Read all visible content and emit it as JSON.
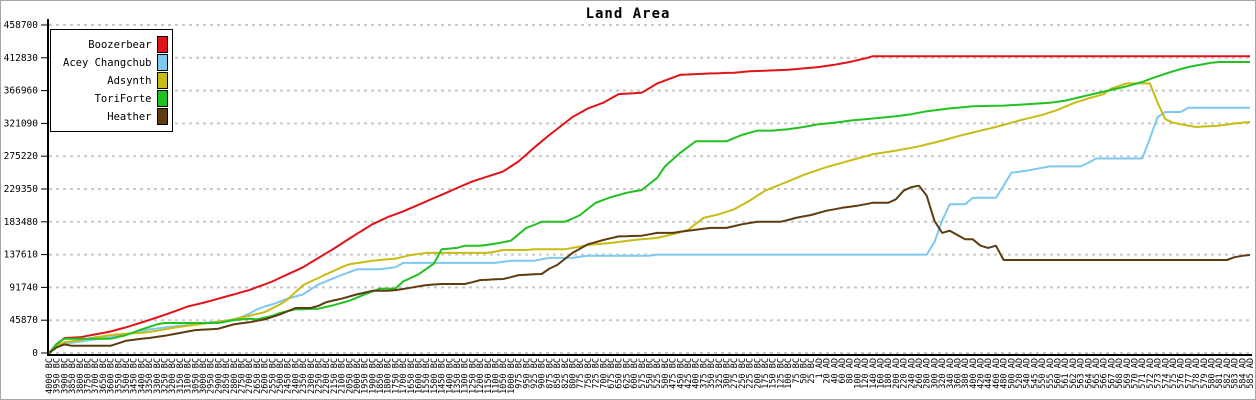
{
  "window": {
    "title": "Land Area"
  },
  "colors": {
    "background": "#ffffff",
    "frame_border": "#a6a6a6",
    "grid": "#c9c9c9",
    "axis": "#000000",
    "legend_border": "#000000"
  },
  "chart_data": {
    "type": "line",
    "title": "Land Area",
    "xlabel": "",
    "ylabel": "",
    "ylim": [
      0,
      458700
    ],
    "grid": "horizontal-dashed",
    "legend_position": "top-left",
    "y_ticks": [
      458700,
      412830,
      366960,
      321090,
      275220,
      229350,
      183480,
      137610,
      91740,
      45870,
      0
    ],
    "x_labels": [
      "4000 BC",
      "3950 BC",
      "3900 BC",
      "3850 BC",
      "3800 BC",
      "3750 BC",
      "3700 BC",
      "3650 BC",
      "3600 BC",
      "3550 BC",
      "3500 BC",
      "3450 BC",
      "3400 BC",
      "3350 BC",
      "3300 BC",
      "3250 BC",
      "3200 BC",
      "3150 BC",
      "3100 BC",
      "3050 BC",
      "3000 BC",
      "2950 BC",
      "2900 BC",
      "2850 BC",
      "2800 BC",
      "2750 BC",
      "2700 BC",
      "2650 BC",
      "2600 BC",
      "2550 BC",
      "2500 BC",
      "2450 BC",
      "2400 BC",
      "2350 BC",
      "2300 BC",
      "2250 BC",
      "2200 BC",
      "2150 BC",
      "2100 BC",
      "2050 BC",
      "2000 BC",
      "1950 BC",
      "1900 BC",
      "1850 BC",
      "1800 BC",
      "1750 BC",
      "1700 BC",
      "1650 BC",
      "1600 BC",
      "1550 BC",
      "1500 BC",
      "1450 BC",
      "1400 BC",
      "1350 BC",
      "1300 BC",
      "1250 BC",
      "1200 BC",
      "1150 BC",
      "1100 BC",
      "1050 BC",
      "1000 BC",
      "975 BC",
      "950 BC",
      "925 BC",
      "900 BC",
      "875 BC",
      "850 BC",
      "825 BC",
      "800 BC",
      "775 BC",
      "750 BC",
      "725 BC",
      "700 BC",
      "675 BC",
      "650 BC",
      "625 BC",
      "600 BC",
      "575 BC",
      "550 BC",
      "525 BC",
      "500 BC",
      "475 BC",
      "450 BC",
      "425 BC",
      "400 BC",
      "375 BC",
      "350 BC",
      "325 BC",
      "300 BC",
      "275 BC",
      "250 BC",
      "225 BC",
      "200 BC",
      "175 BC",
      "150 BC",
      "125 BC",
      "100 BC",
      "75 BC",
      "50 BC",
      "25 BC",
      "1 AD",
      "20 AD",
      "40 AD",
      "60 AD",
      "80 AD",
      "100 AD",
      "120 AD",
      "140 AD",
      "160 AD",
      "180 AD",
      "200 AD",
      "220 AD",
      "240 AD",
      "260 AD",
      "280 AD",
      "300 AD",
      "320 AD",
      "340 AD",
      "360 AD",
      "380 AD",
      "400 AD",
      "420 AD",
      "440 AD",
      "460 AD",
      "480 AD",
      "500 AD",
      "520 AD",
      "540 AD",
      "545 AD",
      "550 AD",
      "555 AD",
      "560 AD",
      "561 AD",
      "562 AD",
      "563 AD",
      "564 AD",
      "565 AD",
      "566 AD",
      "567 AD",
      "568 AD",
      "569 AD",
      "570 AD",
      "571 AD",
      "572 AD",
      "573 AD",
      "574 AD",
      "575 AD",
      "576 AD",
      "577 AD",
      "578 AD",
      "579 AD",
      "580 AD",
      "581 AD",
      "582 AD",
      "583 AD",
      "584 AD",
      "585 AD"
    ],
    "series": [
      {
        "name": "Boozerbear",
        "color": "#e01418",
        "values": [
          0,
          12000,
          21000,
          21500,
          22000,
          24000,
          26000,
          28000,
          30000,
          33000,
          36000,
          39300,
          42700,
          46000,
          49700,
          53300,
          57000,
          61000,
          65000,
          67500,
          70000,
          73000,
          76000,
          79000,
          82000,
          85000,
          88000,
          92000,
          96000,
          100000,
          105000,
          110000,
          115000,
          120000,
          126500,
          133000,
          139500,
          146000,
          153000,
          160000,
          166700,
          173300,
          180000,
          185000,
          190000,
          194000,
          198000,
          202700,
          207300,
          212000,
          216700,
          221300,
          226000,
          230700,
          235300,
          240000,
          243500,
          247000,
          250500,
          254000,
          261000,
          268000,
          277500,
          287000,
          296000,
          305000,
          313300,
          321700,
          330000,
          336000,
          342000,
          346000,
          350000,
          356000,
          362000,
          362700,
          363300,
          364000,
          370500,
          377000,
          381000,
          385000,
          389000,
          389500,
          390000,
          390500,
          391000,
          391300,
          391700,
          392000,
          393000,
          394000,
          394400,
          394800,
          395200,
          395600,
          396000,
          397000,
          398000,
          399000,
          400000,
          401500,
          403000,
          405000,
          407000,
          409500,
          412000,
          415000,
          415000,
          415000,
          415000,
          415000,
          415000,
          415000,
          415000,
          415000,
          415000,
          415000,
          415000,
          415000,
          415000,
          415000,
          415000,
          415000,
          415000,
          415000,
          415000,
          415000,
          415000,
          415000,
          415000,
          415000,
          415000,
          415000,
          415000,
          415000,
          415000,
          415000,
          415000,
          415000,
          415000,
          415000,
          415000,
          415000,
          415000,
          415000,
          415000,
          415000,
          415000,
          415000,
          415000,
          415000,
          415000,
          415000,
          415000,
          415000,
          415000
        ]
      },
      {
        "name": "Acey Changchub",
        "color": "#7fc9ef",
        "values": [
          0,
          8000,
          13000,
          14500,
          16000,
          17500,
          19000,
          20500,
          22000,
          24000,
          26000,
          28300,
          30700,
          33000,
          34300,
          35700,
          37000,
          38000,
          39000,
          40500,
          42000,
          43000,
          44000,
          45000,
          47500,
          50000,
          55000,
          61000,
          65000,
          68000,
          72000,
          76000,
          79000,
          82000,
          89000,
          96000,
          100300,
          104700,
          109000,
          113000,
          117000,
          117000,
          117000,
          117000,
          118500,
          120000,
          126000,
          126000,
          126000,
          126000,
          126000,
          126000,
          126000,
          126000,
          126000,
          126000,
          126000,
          126000,
          126000,
          127500,
          129000,
          129000,
          129000,
          129000,
          131000,
          133000,
          133000,
          133000,
          133000,
          134500,
          136000,
          136000,
          136000,
          136000,
          136000,
          136000,
          136000,
          136000,
          136000,
          137610,
          137610,
          137610,
          137610,
          137610,
          137610,
          137610,
          137610,
          137610,
          137610,
          137610,
          137610,
          137610,
          137610,
          137610,
          137610,
          137610,
          137610,
          137610,
          137610,
          137610,
          137610,
          137610,
          137610,
          137610,
          137610,
          137610,
          137610,
          137610,
          137610,
          137610,
          137610,
          137610,
          137610,
          137610,
          137610,
          155000,
          185000,
          208000,
          208000,
          208000,
          217000,
          217000,
          217000,
          217000,
          234000,
          252000,
          253500,
          255000,
          257000,
          259000,
          261000,
          261000,
          261000,
          261000,
          261000,
          266000,
          272000,
          272000,
          272000,
          272000,
          272000,
          272000,
          272000,
          300000,
          330000,
          337000,
          337000,
          337000,
          343000,
          343000,
          343000,
          343000,
          343000,
          343000,
          343000,
          343000,
          343000
        ]
      },
      {
        "name": "Adsynth",
        "color": "#c8bc14",
        "values": [
          0,
          10000,
          15000,
          16500,
          18000,
          20000,
          22000,
          23500,
          25000,
          26000,
          27000,
          27500,
          28000,
          29500,
          31000,
          33000,
          35000,
          36500,
          38000,
          39500,
          41000,
          42300,
          43700,
          45000,
          47300,
          49700,
          52000,
          54500,
          57000,
          62500,
          68000,
          75000,
          85000,
          95000,
          100000,
          105000,
          110000,
          115000,
          120000,
          124000,
          125700,
          127300,
          129000,
          130000,
          131000,
          132000,
          134500,
          137000,
          138500,
          140000,
          140000,
          140000,
          140000,
          140000,
          140000,
          140000,
          140000,
          140000,
          142000,
          144000,
          144000,
          144000,
          144000,
          145000,
          145000,
          145000,
          145000,
          145000,
          147000,
          149000,
          151000,
          152000,
          153000,
          154000,
          155300,
          156700,
          158000,
          159000,
          160000,
          161000,
          163500,
          166000,
          169000,
          172000,
          180500,
          189000,
          191500,
          194000,
          197500,
          201000,
          207000,
          213000,
          220000,
          227000,
          231300,
          235700,
          240000,
          244500,
          249000,
          252700,
          256300,
          260000,
          263000,
          266000,
          269000,
          272000,
          275000,
          278000,
          279700,
          281300,
          283000,
          285000,
          287000,
          289000,
          291700,
          294300,
          297000,
          300000,
          303000,
          305700,
          308300,
          311000,
          313500,
          316000,
          319000,
          322000,
          325000,
          327700,
          330300,
          333000,
          336500,
          340000,
          344500,
          349000,
          352500,
          356000,
          359000,
          362000,
          370000,
          373500,
          377000,
          377000,
          377000,
          377000,
          350000,
          327000,
          322000,
          320000,
          318000,
          316000,
          316700,
          317300,
          318000,
          319500,
          321000,
          322000,
          323000
        ]
      },
      {
        "name": "ToriForte",
        "color": "#21c121",
        "values": [
          0,
          13000,
          20000,
          20000,
          20000,
          20000,
          20000,
          20000,
          20000,
          22500,
          25000,
          29000,
          33000,
          36500,
          40000,
          42000,
          42000,
          42000,
          42000,
          42000,
          42000,
          42000,
          42000,
          44000,
          46000,
          47000,
          48000,
          47000,
          49500,
          52000,
          56000,
          58500,
          61000,
          61300,
          61700,
          62000,
          64500,
          67000,
          70000,
          73000,
          77500,
          82000,
          86000,
          90000,
          90000,
          90000,
          100000,
          105000,
          110000,
          117500,
          125000,
          145000,
          146000,
          147000,
          150000,
          150000,
          150000,
          151500,
          153000,
          155000,
          157000,
          166000,
          175000,
          179000,
          183500,
          183500,
          183500,
          183500,
          188000,
          193000,
          201500,
          210000,
          214000,
          218000,
          221000,
          224000,
          226000,
          228000,
          236500,
          245000,
          261000,
          270500,
          280000,
          288000,
          296000,
          296000,
          296000,
          296000,
          296000,
          300500,
          305000,
          308000,
          311000,
          311000,
          311000,
          312000,
          313000,
          314500,
          316000,
          318000,
          320000,
          321000,
          322000,
          323500,
          325000,
          326000,
          327000,
          328000,
          329000,
          330000,
          331000,
          332500,
          334000,
          336000,
          338000,
          339300,
          340700,
          342000,
          343000,
          344000,
          345000,
          345300,
          345500,
          345800,
          346000,
          346700,
          347300,
          348000,
          348700,
          349300,
          350000,
          351500,
          353000,
          355500,
          358000,
          360500,
          363000,
          365500,
          368000,
          370500,
          373000,
          376000,
          379000,
          383000,
          387000,
          390500,
          394000,
          397000,
          400000,
          402000,
          404000,
          406000,
          407000,
          407000,
          407000,
          407000,
          407000
        ]
      },
      {
        "name": "Heather",
        "color": "#5e3c10",
        "values": [
          0,
          8000,
          12000,
          10000,
          10000,
          10000,
          10000,
          10000,
          10000,
          13500,
          17000,
          18500,
          20000,
          21000,
          22500,
          24000,
          26000,
          28000,
          30000,
          32000,
          32700,
          33300,
          34000,
          37000,
          40000,
          41500,
          43000,
          45000,
          47000,
          50500,
          54000,
          58500,
          63000,
          63000,
          63000,
          66000,
          71000,
          73500,
          76000,
          79000,
          82000,
          84500,
          87000,
          87000,
          87000,
          88000,
          89500,
          91300,
          93200,
          95000,
          95800,
          96500,
          96500,
          96500,
          96500,
          99000,
          102000,
          102500,
          103000,
          103500,
          106000,
          109000,
          109500,
          110000,
          110500,
          118000,
          123000,
          131500,
          140000,
          146000,
          152000,
          155000,
          158000,
          160500,
          163000,
          163300,
          163700,
          164000,
          166000,
          168000,
          168000,
          168000,
          169500,
          171000,
          172300,
          173700,
          175000,
          175000,
          175000,
          177500,
          180000,
          181800,
          183500,
          183500,
          183500,
          183500,
          186000,
          189000,
          191000,
          193000,
          196000,
          199000,
          201000,
          203000,
          204500,
          206000,
          208000,
          210000,
          210000,
          210000,
          215000,
          227000,
          232000,
          234000,
          220000,
          185000,
          168000,
          171000,
          165000,
          159000,
          159000,
          150000,
          147000,
          150000,
          130000,
          130000,
          130000,
          130000,
          130000,
          130000,
          130000,
          130000,
          130000,
          130000,
          130000,
          130000,
          130000,
          130000,
          130000,
          130000,
          130000,
          130000,
          130000,
          130000,
          130000,
          130000,
          130000,
          130000,
          130000,
          130000,
          130000,
          130000,
          130000,
          130000,
          134000,
          136000,
          137000
        ]
      }
    ]
  }
}
